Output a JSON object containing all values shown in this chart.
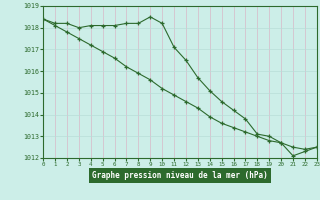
{
  "line1_x": [
    0,
    1,
    2,
    3,
    4,
    5,
    6,
    7,
    8,
    9,
    10,
    11,
    12,
    13,
    14,
    15,
    16,
    17,
    18,
    19,
    20,
    21,
    22,
    23
  ],
  "line1_y": [
    1018.4,
    1018.2,
    1018.2,
    1018.0,
    1018.1,
    1018.1,
    1018.1,
    1018.2,
    1018.2,
    1018.5,
    1018.2,
    1017.1,
    1016.5,
    1015.7,
    1015.1,
    1014.6,
    1014.2,
    1013.8,
    1013.1,
    1013.0,
    1012.7,
    1012.1,
    1012.3,
    1012.5
  ],
  "line2_x": [
    0,
    1,
    2,
    3,
    4,
    5,
    6,
    7,
    8,
    9,
    10,
    11,
    12,
    13,
    14,
    15,
    16,
    17,
    18,
    19,
    20,
    21,
    22,
    23
  ],
  "line2_y": [
    1018.4,
    1018.1,
    1017.8,
    1017.5,
    1017.2,
    1016.9,
    1016.6,
    1016.2,
    1015.9,
    1015.6,
    1015.2,
    1014.9,
    1014.6,
    1014.3,
    1013.9,
    1013.6,
    1013.4,
    1013.2,
    1013.0,
    1012.8,
    1012.7,
    1012.5,
    1012.4,
    1012.5
  ],
  "ylim": [
    1012,
    1019
  ],
  "xlim": [
    0,
    23
  ],
  "yticks": [
    1012,
    1013,
    1014,
    1015,
    1016,
    1017,
    1018,
    1019
  ],
  "xticks": [
    0,
    1,
    2,
    3,
    4,
    5,
    6,
    7,
    8,
    9,
    10,
    11,
    12,
    13,
    14,
    15,
    16,
    17,
    18,
    19,
    20,
    21,
    22,
    23
  ],
  "line_color": "#2d6a2d",
  "bg_color": "#cceee8",
  "grid_color": "#b8ddd8",
  "xlabel": "Graphe pression niveau de la mer (hPa)",
  "marker": "+",
  "marker_size": 3,
  "line_width": 0.8
}
